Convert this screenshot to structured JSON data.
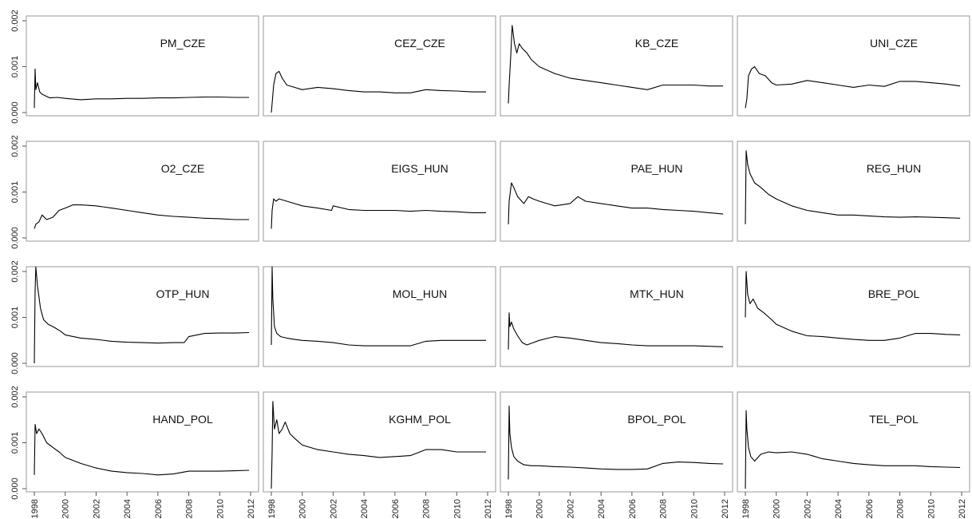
{
  "chart_data": {
    "type": "line",
    "layout": "4x4 small multiples, shared axes",
    "xlim": [
      1998,
      2012
    ],
    "ylim": [
      0,
      0.002
    ],
    "x_ticks": [
      "1998",
      "2000",
      "2002",
      "2004",
      "2006",
      "2008",
      "2010",
      "2012"
    ],
    "y_ticks": [
      "0.000",
      "0.001",
      "0.002"
    ],
    "line_color": "#000000",
    "frame_color": "#9a9a9a",
    "panels": [
      {
        "title": "PM_CZE",
        "x": [
          1998.0,
          1998.05,
          1998.1,
          1998.2,
          1998.35,
          1998.5,
          1999,
          1999.5,
          2000,
          2001,
          2002,
          2003,
          2004,
          2005,
          2006,
          2007,
          2008,
          2009,
          2010,
          2011,
          2011.9
        ],
        "y": [
          0.0001,
          0.00095,
          0.0005,
          0.00065,
          0.00045,
          0.0004,
          0.00032,
          0.00033,
          0.00031,
          0.00028,
          0.0003,
          0.0003,
          0.00031,
          0.00031,
          0.00032,
          0.00032,
          0.00033,
          0.00034,
          0.00034,
          0.00033,
          0.00033
        ]
      },
      {
        "title": "CEZ_CZE",
        "x": [
          1998.0,
          1998.05,
          1998.15,
          1998.3,
          1998.5,
          1998.7,
          1999,
          1999.5,
          2000,
          2001,
          2002,
          2003,
          2004,
          2005,
          2006,
          2007,
          2008,
          2009,
          2010,
          2011,
          2011.9
        ],
        "y": [
          0.0,
          0.0002,
          0.0006,
          0.00085,
          0.0009,
          0.00075,
          0.0006,
          0.00055,
          0.0005,
          0.00055,
          0.00052,
          0.00048,
          0.00045,
          0.00045,
          0.00043,
          0.00043,
          0.0005,
          0.00048,
          0.00047,
          0.00045,
          0.00045
        ]
      },
      {
        "title": "KB_CZE",
        "x": [
          1998.0,
          1998.05,
          1998.15,
          1998.25,
          1998.4,
          1998.55,
          1998.7,
          1998.9,
          1999.2,
          1999.5,
          2000,
          2001,
          2002,
          2003,
          2004,
          2005,
          2006,
          2007,
          2008,
          2009,
          2010,
          2011,
          2011.9
        ],
        "y": [
          0.0002,
          0.0006,
          0.0012,
          0.0019,
          0.0015,
          0.0013,
          0.0015,
          0.0014,
          0.0013,
          0.00115,
          0.001,
          0.00085,
          0.00075,
          0.0007,
          0.00065,
          0.0006,
          0.00055,
          0.0005,
          0.0006,
          0.0006,
          0.0006,
          0.00058,
          0.00058
        ]
      },
      {
        "title": "UNI_CZE",
        "x": [
          1998.0,
          1998.1,
          1998.2,
          1998.4,
          1998.6,
          1998.9,
          1999.3,
          1999.7,
          2000,
          2001,
          2002,
          2003,
          2004,
          2005,
          2006,
          2007,
          2008,
          2009,
          2010,
          2011,
          2011.9
        ],
        "y": [
          0.0001,
          0.0003,
          0.0008,
          0.00095,
          0.001,
          0.00085,
          0.0008,
          0.00065,
          0.0006,
          0.00062,
          0.0007,
          0.00065,
          0.0006,
          0.00055,
          0.0006,
          0.00057,
          0.00068,
          0.00068,
          0.00065,
          0.00062,
          0.00058
        ]
      },
      {
        "title": "O2_CZE",
        "x": [
          1998.0,
          1998.1,
          1998.3,
          1998.5,
          1998.8,
          1999.2,
          1999.6,
          2000,
          2000.5,
          2001,
          2002,
          2003,
          2004,
          2005,
          2006,
          2007,
          2008,
          2009,
          2010,
          2011,
          2011.9
        ],
        "y": [
          0.0002,
          0.0003,
          0.00035,
          0.0005,
          0.0004,
          0.00045,
          0.0006,
          0.00065,
          0.00072,
          0.00072,
          0.0007,
          0.00065,
          0.0006,
          0.00055,
          0.0005,
          0.00047,
          0.00045,
          0.00043,
          0.00042,
          0.0004,
          0.0004
        ]
      },
      {
        "title": "EIGS_HUN",
        "x": [
          1998.0,
          1998.05,
          1998.15,
          1998.3,
          1998.5,
          1999,
          1999.5,
          2000,
          2001,
          2001.9,
          2002.0,
          2003,
          2004,
          2005,
          2006,
          2007,
          2008,
          2009,
          2010,
          2011,
          2011.9
        ],
        "y": [
          0.0002,
          0.0006,
          0.00085,
          0.0008,
          0.00085,
          0.0008,
          0.00075,
          0.0007,
          0.00065,
          0.0006,
          0.0007,
          0.00062,
          0.0006,
          0.0006,
          0.0006,
          0.00058,
          0.0006,
          0.00058,
          0.00057,
          0.00055,
          0.00055
        ]
      },
      {
        "title": "PAE_HUN",
        "x": [
          1998.0,
          1998.05,
          1998.2,
          1998.35,
          1998.6,
          1999.0,
          1999.3,
          1999.6,
          2000,
          2000.5,
          2001,
          2002,
          2002.5,
          2003,
          2004,
          2005,
          2006,
          2007,
          2008,
          2009,
          2010,
          2011,
          2011.9
        ],
        "y": [
          0.0003,
          0.0008,
          0.0012,
          0.0011,
          0.0009,
          0.00075,
          0.0009,
          0.00085,
          0.0008,
          0.00075,
          0.0007,
          0.00075,
          0.0009,
          0.0008,
          0.00075,
          0.0007,
          0.00065,
          0.00065,
          0.00062,
          0.0006,
          0.00058,
          0.00055,
          0.00052
        ]
      },
      {
        "title": "REG_HUN",
        "x": [
          1998.0,
          1998.05,
          1998.15,
          1998.3,
          1998.6,
          1999.0,
          1999.5,
          2000,
          2001,
          2002,
          2003,
          2004,
          2005,
          2006,
          2007,
          2008,
          2009,
          2010,
          2011,
          2011.9
        ],
        "y": [
          0.0003,
          0.0019,
          0.0016,
          0.0014,
          0.0012,
          0.0011,
          0.00095,
          0.00085,
          0.0007,
          0.0006,
          0.00055,
          0.0005,
          0.0005,
          0.00048,
          0.00046,
          0.00045,
          0.00046,
          0.00045,
          0.00044,
          0.00043
        ]
      },
      {
        "title": "OTP_HUN",
        "x": [
          1998.0,
          1998.05,
          1998.1,
          1998.2,
          1998.4,
          1998.6,
          1998.9,
          1999.3,
          1999.7,
          2000,
          2001,
          2002,
          2003,
          2004,
          2005,
          2006,
          2007,
          2007.7,
          2008,
          2009,
          2010,
          2011,
          2011.9
        ],
        "y": [
          0.0,
          0.0016,
          0.0021,
          0.0017,
          0.0012,
          0.00095,
          0.00085,
          0.00078,
          0.0007,
          0.00062,
          0.00055,
          0.00052,
          0.00048,
          0.00046,
          0.00045,
          0.00044,
          0.00045,
          0.00045,
          0.00058,
          0.00065,
          0.00066,
          0.00066,
          0.00067
        ]
      },
      {
        "title": "MOL_HUN",
        "x": [
          1998.0,
          1998.05,
          1998.1,
          1998.2,
          1998.35,
          1998.6,
          1999.0,
          1999.5,
          2000,
          2001,
          2002,
          2003,
          2004,
          2005,
          2006,
          2007,
          2008,
          2009,
          2010,
          2011,
          2011.9
        ],
        "y": [
          0.0004,
          0.0021,
          0.0014,
          0.0008,
          0.00065,
          0.00058,
          0.00055,
          0.00052,
          0.0005,
          0.00048,
          0.00045,
          0.0004,
          0.00038,
          0.00038,
          0.00038,
          0.00038,
          0.00048,
          0.0005,
          0.0005,
          0.0005,
          0.0005
        ]
      },
      {
        "title": "MTK_HUN",
        "x": [
          1998.0,
          1998.05,
          1998.1,
          1998.2,
          1998.35,
          1998.6,
          1998.9,
          1999.2,
          1999.6,
          2000,
          2000.6,
          2001,
          2002,
          2003,
          2004,
          2005,
          2006,
          2007,
          2008,
          2009,
          2010,
          2011,
          2011.9
        ],
        "y": [
          0.0003,
          0.0011,
          0.0008,
          0.0009,
          0.00075,
          0.0006,
          0.00045,
          0.0004,
          0.00045,
          0.0005,
          0.00055,
          0.00058,
          0.00055,
          0.0005,
          0.00045,
          0.00043,
          0.0004,
          0.00038,
          0.00038,
          0.00038,
          0.00038,
          0.00037,
          0.00036
        ]
      },
      {
        "title": "BRE_POL",
        "x": [
          1998.0,
          1998.05,
          1998.15,
          1998.3,
          1998.5,
          1998.8,
          1999.2,
          1999.7,
          2000,
          2001,
          2002,
          2003,
          2004,
          2005,
          2006,
          2007,
          2008,
          2009,
          2010,
          2011,
          2011.9
        ],
        "y": [
          0.001,
          0.002,
          0.0015,
          0.0013,
          0.0014,
          0.0012,
          0.0011,
          0.00095,
          0.00085,
          0.0007,
          0.0006,
          0.00058,
          0.00055,
          0.00052,
          0.0005,
          0.0005,
          0.00055,
          0.00065,
          0.00065,
          0.00063,
          0.00062
        ]
      },
      {
        "title": "HAND_POL",
        "x": [
          1998.0,
          1998.05,
          1998.15,
          1998.3,
          1998.5,
          1998.8,
          1999.2,
          1999.6,
          2000,
          2001,
          2002,
          2003,
          2004,
          2005,
          2006,
          2007,
          2008,
          2009,
          2010,
          2011,
          2011.9
        ],
        "y": [
          0.0003,
          0.0014,
          0.0012,
          0.0013,
          0.0012,
          0.001,
          0.0009,
          0.0008,
          0.00068,
          0.00055,
          0.00045,
          0.00038,
          0.00035,
          0.00033,
          0.0003,
          0.00032,
          0.00038,
          0.00038,
          0.00038,
          0.00039,
          0.0004
        ]
      },
      {
        "title": "KGHM_POL",
        "x": [
          1998.0,
          1998.05,
          1998.1,
          1998.2,
          1998.35,
          1998.5,
          1998.7,
          1998.9,
          1999.2,
          1999.5,
          2000,
          2001,
          2002,
          2003,
          2004,
          2005,
          2006,
          2007,
          2008,
          2009,
          2010,
          2011,
          2011.9
        ],
        "y": [
          0.0,
          0.0008,
          0.0019,
          0.0013,
          0.0015,
          0.0012,
          0.0013,
          0.00145,
          0.0012,
          0.0011,
          0.00095,
          0.00085,
          0.0008,
          0.00075,
          0.00072,
          0.00068,
          0.0007,
          0.00072,
          0.00085,
          0.00085,
          0.0008,
          0.0008,
          0.0008
        ]
      },
      {
        "title": "BPOL_POL",
        "x": [
          1998.0,
          1998.05,
          1998.1,
          1998.2,
          1998.35,
          1998.6,
          1999.0,
          1999.5,
          2000,
          2001,
          2002,
          2003,
          2004,
          2005,
          2006,
          2007,
          2008,
          2009,
          2010,
          2011,
          2011.9
        ],
        "y": [
          0.0002,
          0.0018,
          0.0012,
          0.0009,
          0.0007,
          0.0006,
          0.00052,
          0.0005,
          0.0005,
          0.00048,
          0.00047,
          0.00045,
          0.00043,
          0.00042,
          0.00042,
          0.00043,
          0.00055,
          0.00058,
          0.00057,
          0.00055,
          0.00054
        ]
      },
      {
        "title": "TEL_POL",
        "x": [
          1998.0,
          1998.05,
          1998.1,
          1998.2,
          1998.35,
          1998.6,
          1999.0,
          1999.5,
          2000,
          2001,
          2002,
          2003,
          2004,
          2005,
          2006,
          2007,
          2008,
          2009,
          2010,
          2011,
          2011.9
        ],
        "y": [
          0.0,
          0.0017,
          0.0013,
          0.0009,
          0.0007,
          0.0006,
          0.00075,
          0.0008,
          0.00078,
          0.0008,
          0.00075,
          0.00065,
          0.0006,
          0.00055,
          0.00052,
          0.0005,
          0.0005,
          0.0005,
          0.00048,
          0.00047,
          0.00046
        ]
      }
    ]
  }
}
